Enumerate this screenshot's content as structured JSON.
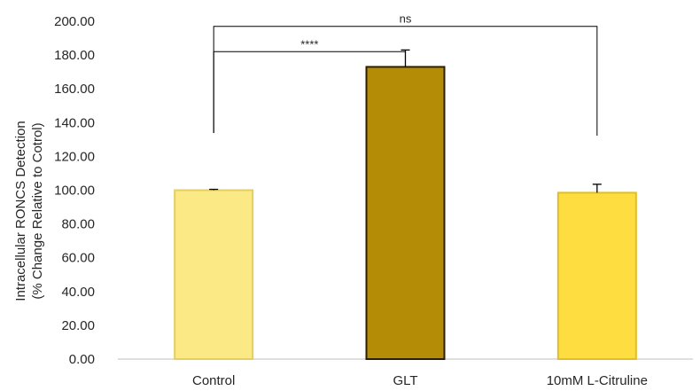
{
  "chart_data": {
    "type": "bar",
    "title": "",
    "xlabel": "",
    "ylabel_lines": [
      "Intracellular RONCS Detection",
      "(% Change Relative to Cotrol)"
    ],
    "categories": [
      "Control",
      "GLT",
      "10mM L-Citruline"
    ],
    "values": [
      100,
      173,
      98.5
    ],
    "errors": [
      0.5,
      10,
      5
    ],
    "ylim": [
      0,
      200
    ],
    "yticks": [
      "0.00",
      "20.00",
      "40.00",
      "60.00",
      "80.00",
      "100.00",
      "120.00",
      "140.00",
      "160.00",
      "180.00",
      "200.00"
    ],
    "grid": false,
    "colors": [
      {
        "fill": "#FBE985",
        "stroke": "#E3CE5E"
      },
      {
        "fill": "#B58C05",
        "stroke": "#2B1E05"
      },
      {
        "fill": "#FDDD3F",
        "stroke": "#E2BE26"
      }
    ],
    "annotations": [
      {
        "from": 0,
        "to": 1,
        "label": "****",
        "y": 182
      },
      {
        "from": 0,
        "to": 2,
        "label": "ns",
        "y": 197
      }
    ]
  }
}
